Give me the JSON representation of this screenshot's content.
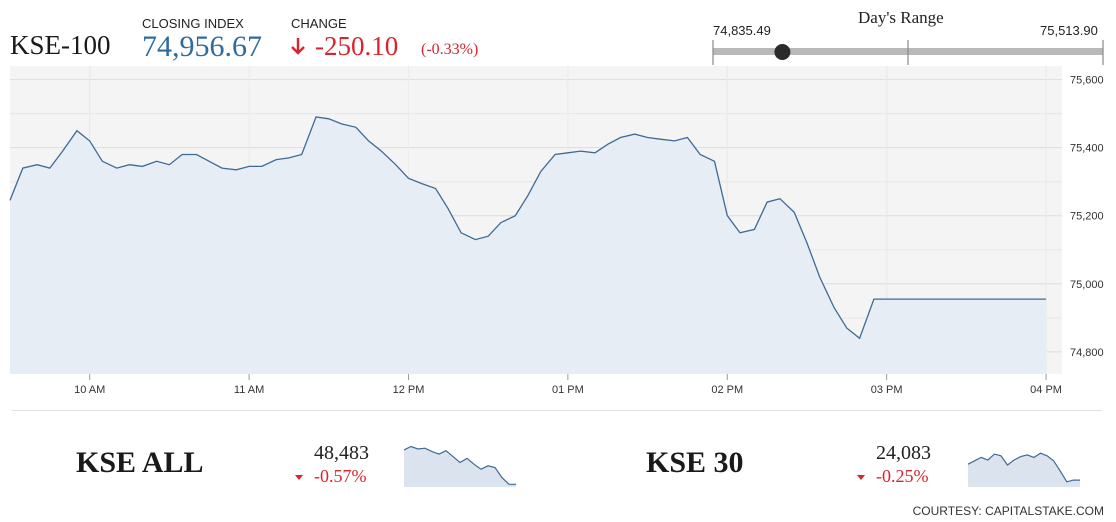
{
  "header": {
    "index_name": "KSE-100",
    "closing_label": "CLOSING INDEX",
    "closing_value": "74,956.67",
    "change_label": "CHANGE",
    "change_value": "-250.10",
    "change_percent": "(-0.33%)",
    "change_color": "#d9232e",
    "closing_color": "#2e6b9e",
    "direction_icon": "down-arrow-icon"
  },
  "days_range": {
    "title": "Day's Range",
    "low": "74,835.49",
    "high": "75,513.90",
    "current_fraction": 0.178
  },
  "chart_data": {
    "type": "area",
    "y_ticks": [
      "75,600",
      "75,400",
      "75,200",
      "75,000",
      "74,800"
    ],
    "y_tick_values": [
      75600,
      75400,
      75200,
      75000,
      74800
    ],
    "x_ticks": [
      "10 AM",
      "11 AM",
      "12 PM",
      "01 PM",
      "02 PM",
      "03 PM",
      "04 PM"
    ],
    "x_tick_hours": [
      10,
      11,
      12,
      13,
      14,
      15,
      16
    ],
    "x_range_hours": [
      9.5,
      16.1
    ],
    "ylim": [
      74735,
      75640
    ],
    "line_color": "#3d6b96",
    "fill_color": "#e6edf4",
    "series": [
      {
        "x": [
          9.5,
          9.58,
          9.67,
          9.75,
          9.83,
          9.92,
          10.0,
          10.08,
          10.17,
          10.25,
          10.33,
          10.42,
          10.5,
          10.58,
          10.67,
          10.75,
          10.83,
          10.92,
          11.0,
          11.08,
          11.17,
          11.25,
          11.33,
          11.42,
          11.5,
          11.58,
          11.67,
          11.75,
          11.83,
          11.92,
          12.0,
          12.08,
          12.17,
          12.25,
          12.33,
          12.42,
          12.5,
          12.58,
          12.67,
          12.75,
          12.83,
          12.92,
          13.0,
          13.08,
          13.17,
          13.25,
          13.33,
          13.42,
          13.5,
          13.58,
          13.67,
          13.75,
          13.83,
          13.92,
          14.0,
          14.08,
          14.17,
          14.25,
          14.33,
          14.42,
          14.5,
          14.58,
          14.67,
          14.75,
          14.83,
          14.92,
          15.0,
          15.08,
          15.17,
          15.25,
          15.33,
          15.42,
          15.5,
          15.58,
          15.67,
          15.75,
          15.83,
          15.92,
          16.0
        ],
        "values": [
          75245,
          75340,
          75350,
          75340,
          75390,
          75450,
          75420,
          75360,
          75340,
          75350,
          75345,
          75360,
          75350,
          75380,
          75380,
          75360,
          75340,
          75335,
          75345,
          75345,
          75365,
          75370,
          75380,
          75490,
          75485,
          75470,
          75460,
          75420,
          75390,
          75350,
          75310,
          75295,
          75280,
          75220,
          75150,
          75130,
          75140,
          75180,
          75200,
          75260,
          75330,
          75380,
          75385,
          75390,
          75385,
          75410,
          75430,
          75440,
          75430,
          75425,
          75420,
          75430,
          75380,
          75360,
          75200,
          75150,
          75160,
          75240,
          75250,
          75210,
          75120,
          75020,
          74930,
          74870,
          74840,
          74955,
          74955,
          74955,
          74955,
          74955,
          74955,
          74955,
          74955,
          74955,
          74955,
          74955,
          74955,
          74955,
          74955
        ]
      }
    ]
  },
  "sub_indices": [
    {
      "name": "KSE ALL",
      "value": "48,483",
      "change": "-0.57%",
      "spark": [
        0.86,
        0.94,
        0.88,
        0.9,
        0.82,
        0.76,
        0.84,
        0.7,
        0.56,
        0.66,
        0.52,
        0.4,
        0.48,
        0.44,
        0.2,
        0.04,
        0.04
      ]
    },
    {
      "name": "KSE 30",
      "value": "24,083",
      "change": "-0.25%",
      "spark": [
        0.52,
        0.6,
        0.68,
        0.62,
        0.76,
        0.72,
        0.5,
        0.62,
        0.7,
        0.74,
        0.68,
        0.78,
        0.72,
        0.6,
        0.36,
        0.1,
        0.14,
        0.14
      ]
    }
  ],
  "courtesy": "COURTESY: CAPITALSTAKE.COM"
}
